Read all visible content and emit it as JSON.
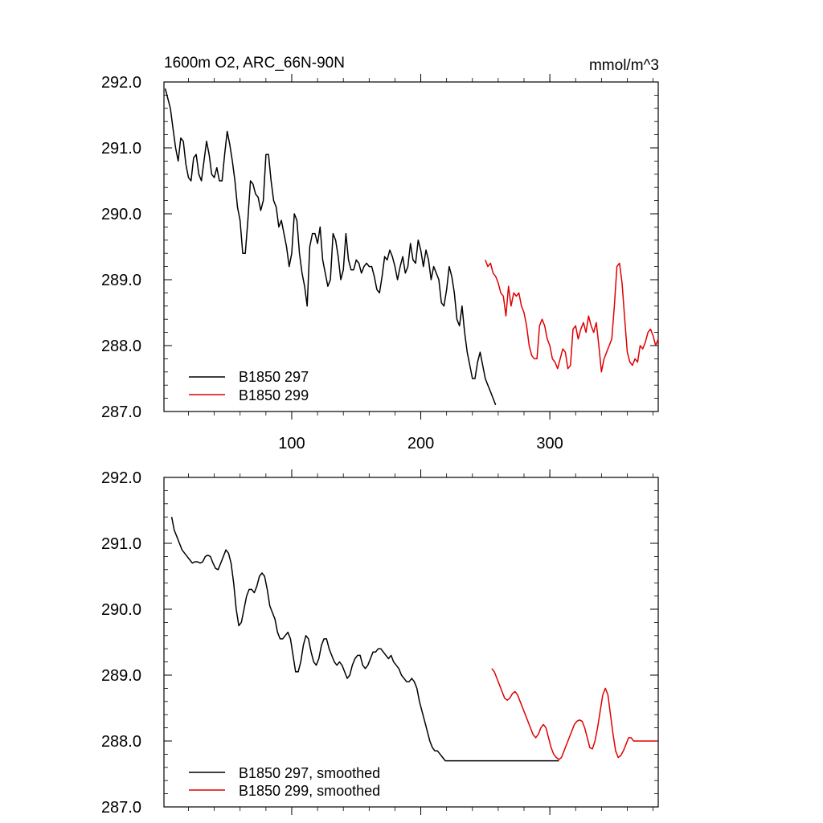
{
  "chart_data": [
    {
      "type": "line",
      "title": "1600m O2, ARC_66N-90N",
      "units": "mmol/m^3",
      "xlabel": "",
      "ylabel": "",
      "xlim": [
        1,
        384
      ],
      "ylim": [
        287.0,
        292.0
      ],
      "x_ticks": [
        100,
        200,
        300
      ],
      "x_tick_labels": [
        "100",
        "200",
        "300"
      ],
      "y_ticks": [
        287.0,
        288.0,
        289.0,
        290.0,
        291.0,
        292.0
      ],
      "y_tick_labels": [
        "287.0",
        "288.0",
        "289.0",
        "290.0",
        "291.0",
        "292.0"
      ],
      "legend_position": "bottom-left",
      "series": [
        {
          "name": "B1850 297",
          "color": "#000000",
          "x": [
            2,
            4,
            6,
            8,
            10,
            12,
            14,
            16,
            18,
            20,
            22,
            24,
            26,
            28,
            30,
            32,
            34,
            36,
            38,
            40,
            42,
            44,
            46,
            48,
            50,
            52,
            54,
            56,
            58,
            60,
            62,
            64,
            66,
            68,
            70,
            72,
            74,
            76,
            78,
            80,
            82,
            84,
            86,
            88,
            90,
            92,
            94,
            96,
            98,
            100,
            102,
            104,
            106,
            108,
            110,
            112,
            114,
            116,
            118,
            120,
            122,
            124,
            126,
            128,
            130,
            132,
            134,
            136,
            138,
            140,
            142,
            144,
            146,
            148,
            150,
            152,
            154,
            156,
            158,
            160,
            162,
            164,
            166,
            168,
            170,
            172,
            174,
            176,
            178,
            180,
            182,
            184,
            186,
            188,
            190,
            192,
            194,
            196,
            198,
            200,
            202,
            204,
            206,
            208,
            210,
            212,
            214,
            216,
            218,
            220,
            222,
            224,
            226,
            228,
            230,
            232,
            234,
            236,
            238,
            240,
            242,
            244,
            246,
            248,
            250,
            252,
            254,
            256,
            258,
            260,
            262,
            264,
            266,
            268,
            270,
            272,
            274,
            276,
            278,
            280,
            282,
            284,
            286,
            288,
            290,
            292,
            294,
            296,
            298,
            300,
            302,
            304,
            306,
            308
          ],
          "values": [
            291.9,
            291.75,
            291.6,
            291.3,
            291.0,
            290.8,
            291.15,
            291.1,
            290.75,
            290.55,
            290.5,
            290.85,
            290.9,
            290.6,
            290.5,
            290.8,
            291.1,
            290.9,
            290.6,
            290.55,
            290.7,
            290.5,
            290.5,
            290.9,
            291.25,
            291.05,
            290.8,
            290.5,
            290.1,
            289.9,
            289.4,
            289.4,
            289.9,
            290.5,
            290.45,
            290.3,
            290.25,
            290.05,
            290.2,
            290.9,
            290.9,
            290.5,
            290.2,
            290.1,
            289.8,
            289.9,
            289.7,
            289.5,
            289.2,
            289.4,
            290.0,
            289.9,
            289.4,
            289.1,
            288.9,
            288.6,
            289.5,
            289.7,
            289.7,
            289.55,
            289.8,
            289.3,
            289.1,
            288.9,
            289.0,
            289.7,
            289.6,
            289.35,
            289.0,
            289.15,
            289.7,
            289.3,
            289.15,
            289.15,
            289.3,
            289.25,
            289.1,
            289.2,
            289.25,
            289.2,
            289.2,
            289.05,
            288.85,
            288.8,
            289.05,
            289.35,
            289.3,
            289.45,
            289.35,
            289.2,
            289.0,
            289.2,
            289.35,
            289.1,
            289.2,
            289.55,
            289.3,
            289.25,
            289.6,
            289.45,
            289.2,
            289.45,
            289.3,
            289.0,
            289.2,
            289.1,
            289.0,
            288.65,
            288.6,
            288.85,
            289.2,
            289.05,
            288.8,
            288.4,
            288.3,
            288.6,
            288.2,
            287.9,
            287.7,
            287.5,
            287.5,
            287.75,
            287.9,
            287.7,
            287.5,
            287.4,
            287.3,
            287.2,
            287.1,
            287.0,
            287.0,
            287.0,
            287.0,
            287.0,
            287.0,
            287.0,
            287.0,
            287.0,
            287.0,
            287.0,
            287.0,
            287.0,
            287.0,
            287.0,
            287.0,
            287.0,
            287.0,
            287.0,
            287.0,
            287.0,
            287.0,
            287.0,
            287.0,
            287.0
          ]
        },
        {
          "name": "B1850 299",
          "color": "#e00000",
          "x": [
            250,
            252,
            254,
            256,
            258,
            260,
            262,
            264,
            266,
            268,
            270,
            272,
            274,
            276,
            278,
            280,
            282,
            284,
            286,
            288,
            290,
            292,
            294,
            296,
            298,
            300,
            302,
            304,
            306,
            308,
            310,
            312,
            314,
            316,
            318,
            320,
            322,
            324,
            326,
            328,
            330,
            332,
            334,
            336,
            338,
            340,
            342,
            344,
            346,
            348,
            350,
            352,
            354,
            356,
            358,
            360,
            362,
            364,
            366,
            368,
            370,
            372,
            374,
            376,
            378,
            380,
            382,
            384
          ],
          "values": [
            289.3,
            289.2,
            289.25,
            289.1,
            289.05,
            288.95,
            288.8,
            288.75,
            288.45,
            288.9,
            288.6,
            288.8,
            288.75,
            288.8,
            288.6,
            288.5,
            288.3,
            288.0,
            287.85,
            287.8,
            287.8,
            288.3,
            288.4,
            288.3,
            288.1,
            288.0,
            287.8,
            287.75,
            287.65,
            287.8,
            287.95,
            287.9,
            287.65,
            287.7,
            288.25,
            288.3,
            288.1,
            288.25,
            288.35,
            288.2,
            288.45,
            288.3,
            288.2,
            288.35,
            288.0,
            287.6,
            287.8,
            287.9,
            288.0,
            288.1,
            288.6,
            289.2,
            289.25,
            288.95,
            288.4,
            287.9,
            287.75,
            287.7,
            287.8,
            287.75,
            288.0,
            287.95,
            288.05,
            288.2,
            288.25,
            288.15,
            288.0,
            288.1
          ]
        }
      ]
    },
    {
      "type": "line",
      "title": "",
      "xlabel": "",
      "ylabel": "",
      "xlim": [
        1,
        384
      ],
      "ylim": [
        287.0,
        292.0
      ],
      "x_ticks": [
        100,
        200,
        300
      ],
      "y_ticks": [
        287.0,
        288.0,
        289.0,
        290.0,
        291.0,
        292.0
      ],
      "y_tick_labels": [
        "287.0",
        "288.0",
        "289.0",
        "290.0",
        "291.0",
        "292.0"
      ],
      "legend_position": "bottom-left",
      "series": [
        {
          "name": "B1850 297, smoothed",
          "color": "#000000",
          "x": [
            7,
            9,
            11,
            13,
            15,
            17,
            19,
            21,
            23,
            25,
            27,
            29,
            31,
            33,
            35,
            37,
            39,
            41,
            43,
            45,
            47,
            49,
            51,
            53,
            55,
            57,
            59,
            61,
            63,
            65,
            67,
            69,
            71,
            73,
            75,
            77,
            79,
            81,
            83,
            85,
            87,
            89,
            91,
            93,
            95,
            97,
            99,
            101,
            103,
            105,
            107,
            109,
            111,
            113,
            115,
            117,
            119,
            121,
            123,
            125,
            127,
            129,
            131,
            133,
            135,
            137,
            139,
            141,
            143,
            145,
            147,
            149,
            151,
            153,
            155,
            157,
            159,
            161,
            163,
            165,
            167,
            169,
            171,
            173,
            175,
            177,
            179,
            181,
            183,
            185,
            187,
            189,
            191,
            193,
            195,
            197,
            199,
            201,
            203,
            205,
            207,
            209,
            211,
            213,
            215,
            217,
            219,
            221,
            223,
            225,
            227,
            229,
            231,
            233,
            235,
            237,
            239,
            241,
            243,
            245,
            247,
            249,
            251,
            253,
            255,
            257,
            259,
            261,
            263,
            265,
            267,
            269,
            271,
            273,
            275,
            277,
            279,
            281,
            283,
            285,
            287,
            289,
            291,
            293,
            295,
            297,
            299,
            301,
            303,
            305,
            307
          ],
          "values": [
            291.4,
            291.2,
            291.1,
            291.0,
            290.9,
            290.85,
            290.8,
            290.75,
            290.7,
            290.72,
            290.72,
            290.7,
            290.72,
            290.8,
            290.82,
            290.8,
            290.7,
            290.62,
            290.6,
            290.7,
            290.8,
            290.9,
            290.85,
            290.7,
            290.4,
            290.0,
            289.75,
            289.8,
            290.0,
            290.2,
            290.3,
            290.3,
            290.25,
            290.35,
            290.5,
            290.55,
            290.5,
            290.3,
            290.05,
            289.95,
            289.85,
            289.65,
            289.55,
            289.55,
            289.6,
            289.65,
            289.55,
            289.3,
            289.05,
            289.05,
            289.2,
            289.45,
            289.6,
            289.55,
            289.35,
            289.2,
            289.15,
            289.25,
            289.45,
            289.55,
            289.55,
            289.4,
            289.3,
            289.2,
            289.15,
            289.2,
            289.15,
            289.05,
            288.95,
            289.0,
            289.15,
            289.25,
            289.3,
            289.3,
            289.15,
            289.1,
            289.15,
            289.25,
            289.35,
            289.35,
            289.4,
            289.4,
            289.35,
            289.3,
            289.25,
            289.3,
            289.2,
            289.15,
            289.1,
            289.0,
            288.95,
            288.9,
            288.9,
            288.95,
            288.9,
            288.8,
            288.6,
            288.45,
            288.3,
            288.15,
            288.0,
            287.9,
            287.85,
            287.85,
            287.8,
            287.75,
            287.7,
            287.7,
            287.7,
            287.7,
            287.7,
            287.7,
            287.7,
            287.7,
            287.7,
            287.7,
            287.7,
            287.7,
            287.7,
            287.7,
            287.7,
            287.7,
            287.7,
            287.7,
            287.7,
            287.7,
            287.7,
            287.7,
            287.7,
            287.7,
            287.7,
            287.7,
            287.7,
            287.7,
            287.7,
            287.7,
            287.7,
            287.7,
            287.7,
            287.7,
            287.7,
            287.7,
            287.7,
            287.7,
            287.7,
            287.7,
            287.7,
            287.7,
            287.7,
            287.7,
            287.7
          ]
        },
        {
          "name": "B1850 299, smoothed",
          "color": "#e00000",
          "x": [
            255,
            257,
            259,
            261,
            263,
            265,
            267,
            269,
            271,
            273,
            275,
            277,
            279,
            281,
            283,
            285,
            287,
            289,
            291,
            293,
            295,
            297,
            299,
            301,
            303,
            305,
            307,
            309,
            311,
            313,
            315,
            317,
            319,
            321,
            323,
            325,
            327,
            329,
            331,
            333,
            335,
            337,
            339,
            341,
            343,
            345,
            347,
            349,
            351,
            353,
            355,
            357,
            359,
            361,
            363,
            365,
            367,
            369,
            371,
            373,
            375,
            377,
            379,
            381,
            383
          ],
          "values": [
            289.1,
            289.05,
            288.95,
            288.85,
            288.75,
            288.65,
            288.62,
            288.65,
            288.72,
            288.75,
            288.7,
            288.6,
            288.5,
            288.4,
            288.3,
            288.2,
            288.1,
            288.05,
            288.1,
            288.2,
            288.25,
            288.2,
            288.05,
            287.9,
            287.8,
            287.75,
            287.72,
            287.75,
            287.85,
            287.95,
            288.05,
            288.15,
            288.25,
            288.3,
            288.32,
            288.3,
            288.2,
            288.05,
            287.9,
            287.88,
            288.0,
            288.2,
            288.45,
            288.7,
            288.8,
            288.7,
            288.4,
            288.1,
            287.85,
            287.75,
            287.78,
            287.85,
            287.95,
            288.05,
            288.05,
            288.0,
            288.0,
            288.0,
            288.0,
            288.0,
            288.0,
            288.0,
            288.0,
            288.0,
            288.0
          ]
        }
      ]
    }
  ]
}
